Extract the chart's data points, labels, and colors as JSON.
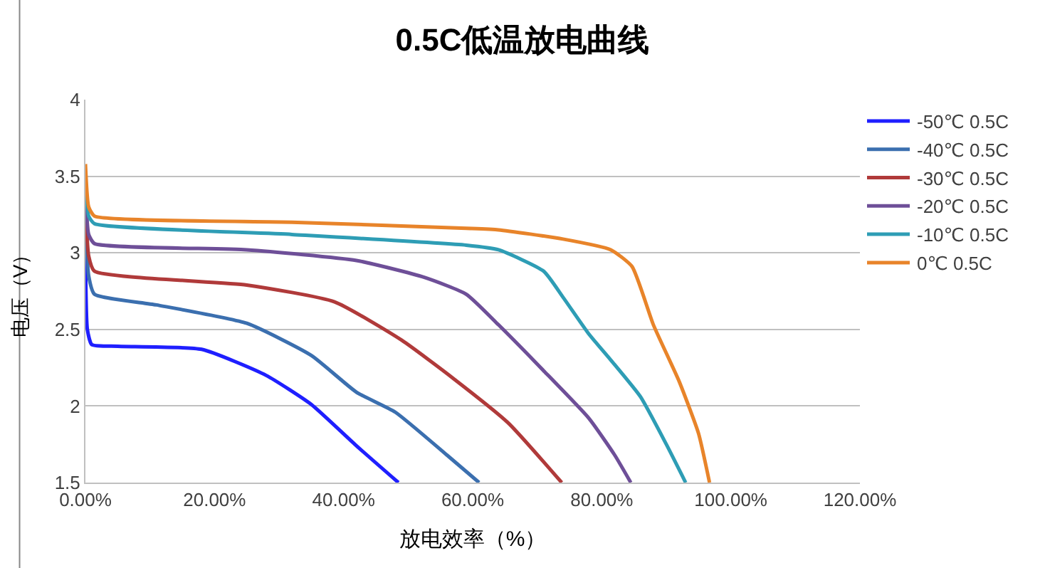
{
  "chart_data": {
    "type": "line",
    "title": "0.5C低温放电曲线",
    "xlabel": "放电效率（%）",
    "ylabel": "电压（V）",
    "xlim": [
      0,
      120
    ],
    "xticks": [
      {
        "value": 0,
        "label": "0.00%"
      },
      {
        "value": 20,
        "label": "20.00%"
      },
      {
        "value": 40,
        "label": "40.00%"
      },
      {
        "value": 60,
        "label": "60.00%"
      },
      {
        "value": 80,
        "label": "80.00%"
      },
      {
        "value": 100,
        "label": "100.00%"
      },
      {
        "value": 120,
        "label": "120.00%"
      }
    ],
    "ylim": [
      1.5,
      4
    ],
    "yticks": [
      1.5,
      2,
      2.5,
      3,
      3.5,
      4
    ],
    "grid": "y",
    "legend": "top right",
    "marker": "none",
    "line_style": "solid",
    "series": [
      {
        "name": "-50℃ 0.5C",
        "color": "#1f1fff",
        "x": [
          0,
          0.3,
          1,
          5,
          18,
          28,
          35,
          42,
          48.5
        ],
        "values": [
          3.02,
          2.5,
          2.4,
          2.39,
          2.37,
          2.2,
          2.01,
          1.74,
          1.5
        ]
      },
      {
        "name": "-40℃ 0.5C",
        "color": "#3b6faf",
        "x": [
          0,
          0.5,
          1.4,
          11,
          25,
          35,
          42,
          48,
          56,
          61
        ],
        "values": [
          3.25,
          2.85,
          2.73,
          2.66,
          2.54,
          2.33,
          2.09,
          1.96,
          1.68,
          1.5
        ]
      },
      {
        "name": "-30℃ 0.5C",
        "color": "#b03a3a",
        "x": [
          0,
          0.5,
          1.4,
          25,
          38.6,
          49,
          57,
          65.5,
          73.8
        ],
        "values": [
          3.35,
          2.98,
          2.88,
          2.79,
          2.68,
          2.43,
          2.18,
          1.89,
          1.5
        ]
      },
      {
        "name": "-20℃ 0.5C",
        "color": "#6e4f98",
        "x": [
          0,
          0.5,
          1.4,
          25,
          42,
          52.5,
          59,
          64,
          71,
          78,
          82,
          84.5
        ],
        "values": [
          3.45,
          3.12,
          3.06,
          3.02,
          2.95,
          2.84,
          2.73,
          2.53,
          2.23,
          1.92,
          1.68,
          1.5
        ]
      },
      {
        "name": "-10℃ 0.5C",
        "color": "#2e9db5",
        "x": [
          0,
          0.5,
          1.4,
          32,
          59,
          64,
          71,
          74,
          78,
          81.4,
          86,
          90,
          93
        ],
        "values": [
          3.5,
          3.24,
          3.19,
          3.12,
          3.05,
          3.02,
          2.88,
          2.71,
          2.47,
          2.3,
          2.06,
          1.75,
          1.5
        ]
      },
      {
        "name": "0℃ 0.5C",
        "color": "#e8842a",
        "x": [
          0,
          0.5,
          1.4,
          32,
          59,
          64,
          74,
          81.4,
          84.7,
          88,
          92,
          95,
          96.7
        ],
        "values": [
          3.58,
          3.3,
          3.24,
          3.2,
          3.16,
          3.15,
          3.09,
          3.02,
          2.91,
          2.53,
          2.16,
          1.82,
          1.5
        ]
      }
    ]
  }
}
